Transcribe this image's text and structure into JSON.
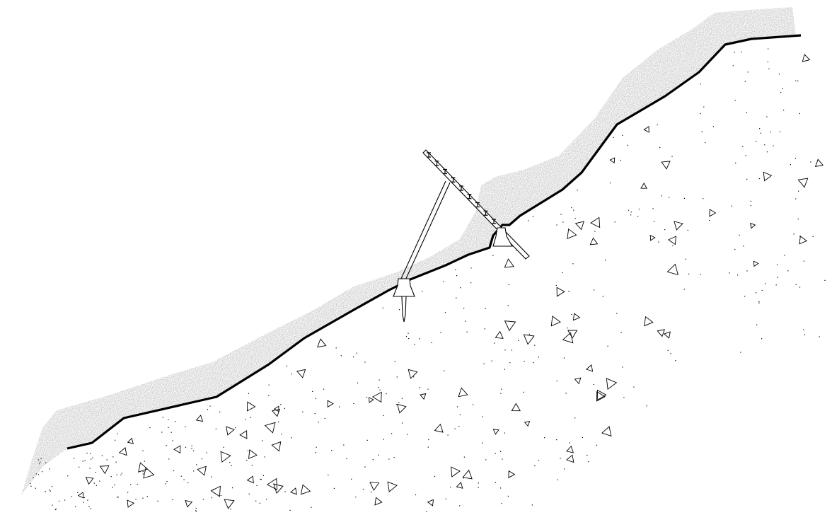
{
  "diagram": {
    "colors": {
      "background": "#ffffff",
      "line": "#000000",
      "fill_texture": "#a8a8a8",
      "ground_marks": "#000000"
    },
    "components": [
      "ground-surface-line",
      "loose-soil-layer",
      "compact-ground",
      "inclined-girder-beam",
      "diagonal-strut",
      "lower-footing-block",
      "upper-footing-block",
      "anchor-pile"
    ]
  }
}
